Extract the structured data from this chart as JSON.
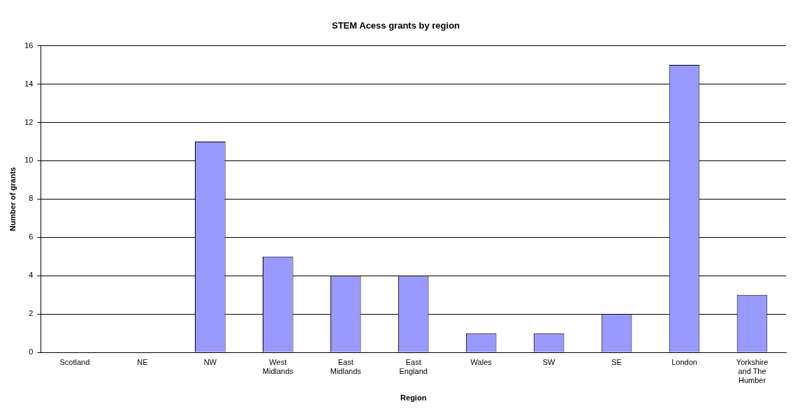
{
  "chart_data": {
    "type": "bar",
    "title": "STEM Acess grants by region",
    "xlabel": "Region",
    "ylabel": "Number of grants",
    "categories": [
      "Scotland",
      "NE",
      "NW",
      "West Midlands",
      "East Midlands",
      "East England",
      "Wales",
      "SW",
      "SE",
      "London",
      "Yorkshire and The Humber"
    ],
    "values": [
      0,
      0,
      11,
      5,
      4,
      4,
      1,
      1,
      2,
      15,
      3
    ],
    "color": "#9999ff",
    "ylim": [
      0,
      16
    ],
    "yticks": [
      0,
      2,
      4,
      6,
      8,
      10,
      12,
      14,
      16
    ],
    "grid": "y",
    "legend": false
  }
}
